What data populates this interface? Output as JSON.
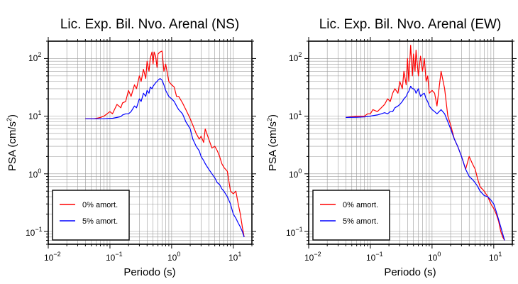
{
  "chart_data": [
    {
      "type": "line",
      "title": "Lic. Exp. Bil. Nvo. Arenal (NS)",
      "xlabel": "Periodo (s)",
      "ylabel_main": "PSA (cm/s",
      "ylabel_sup": "2",
      "ylabel_close": ")",
      "xscale": "log",
      "yscale": "log",
      "xlim": [
        0.01,
        20
      ],
      "ylim": [
        0.06,
        200
      ],
      "grid": true,
      "legend_position": "bottom-left",
      "x_ticks": [
        {
          "base": "10",
          "exp": "−2"
        },
        {
          "base": "10",
          "exp": "−1"
        },
        {
          "base": "10",
          "exp": "0"
        },
        {
          "base": "10",
          "exp": "1"
        }
      ],
      "y_ticks": [
        {
          "base": "10",
          "exp": "−1"
        },
        {
          "base": "10",
          "exp": "0"
        },
        {
          "base": "10",
          "exp": "1"
        },
        {
          "base": "10",
          "exp": "2"
        }
      ],
      "series": [
        {
          "name": "0% amort.",
          "color": "#ff0000",
          "x": [
            0.04,
            0.055,
            0.07,
            0.08,
            0.1,
            0.11,
            0.13,
            0.15,
            0.16,
            0.18,
            0.2,
            0.22,
            0.25,
            0.27,
            0.3,
            0.32,
            0.35,
            0.38,
            0.4,
            0.43,
            0.45,
            0.48,
            0.5,
            0.52,
            0.55,
            0.58,
            0.6,
            0.65,
            0.7,
            0.75,
            0.8,
            0.9,
            1.0,
            1.1,
            1.2,
            1.3,
            1.5,
            1.7,
            2.0,
            2.2,
            2.5,
            2.8,
            3.0,
            3.3,
            3.5,
            4.0,
            4.5,
            5.0,
            5.5,
            6.0,
            6.5,
            7.0,
            8.0,
            9.0,
            10.0,
            11.0,
            12.0,
            13.0,
            14.0,
            15.0
          ],
          "y": [
            9,
            9,
            9.5,
            10,
            12,
            11,
            16,
            14,
            17,
            18,
            28,
            22,
            35,
            30,
            50,
            40,
            65,
            45,
            90,
            60,
            100,
            130,
            80,
            130,
            110,
            70,
            120,
            130,
            135,
            60,
            80,
            40,
            35,
            32,
            22,
            22,
            17,
            13,
            9,
            7,
            5,
            4,
            4.5,
            3.5,
            6,
            4,
            2.8,
            3,
            2.5,
            2,
            1.5,
            1.3,
            1.1,
            0.5,
            0.45,
            0.5,
            0.3,
            0.2,
            0.12,
            0.08
          ]
        },
        {
          "name": "5% amort.",
          "color": "#0000ff",
          "x": [
            0.04,
            0.055,
            0.07,
            0.08,
            0.1,
            0.11,
            0.13,
            0.15,
            0.16,
            0.18,
            0.2,
            0.22,
            0.25,
            0.27,
            0.3,
            0.32,
            0.35,
            0.38,
            0.4,
            0.43,
            0.45,
            0.48,
            0.5,
            0.52,
            0.55,
            0.58,
            0.6,
            0.65,
            0.7,
            0.75,
            0.8,
            0.9,
            1.0,
            1.1,
            1.2,
            1.3,
            1.5,
            1.7,
            2.0,
            2.2,
            2.5,
            2.8,
            3.0,
            3.3,
            3.5,
            4.0,
            4.5,
            5.0,
            5.5,
            6.0,
            6.5,
            7.0,
            8.0,
            9.0,
            10.0,
            11.0,
            12.0,
            13.0,
            14.0,
            15.0
          ],
          "y": [
            9,
            9,
            9,
            9,
            9.2,
            9.2,
            9.5,
            9.8,
            10.5,
            11,
            11,
            12,
            15,
            14,
            20,
            18,
            25,
            22,
            28,
            25,
            32,
            30,
            33,
            35,
            38,
            40,
            42,
            45,
            42,
            35,
            28,
            22,
            20,
            18,
            15,
            13,
            11,
            8,
            6,
            4,
            3,
            2.5,
            2,
            1.7,
            1.5,
            1.2,
            1,
            0.85,
            0.7,
            0.65,
            0.55,
            0.5,
            0.4,
            0.3,
            0.2,
            0.17,
            0.14,
            0.12,
            0.1,
            0.08
          ]
        }
      ]
    },
    {
      "type": "line",
      "title": "Lic. Exp. Bil. Nvo. Arenal (EW)",
      "xlabel": "Periodo (s)",
      "ylabel_main": "PSA (cm/s",
      "ylabel_sup": "2",
      "ylabel_close": ")",
      "xscale": "log",
      "yscale": "log",
      "xlim": [
        0.01,
        20
      ],
      "ylim": [
        0.06,
        200
      ],
      "grid": true,
      "legend_position": "bottom-left",
      "x_ticks": [
        {
          "base": "10",
          "exp": "−2"
        },
        {
          "base": "10",
          "exp": "−1"
        },
        {
          "base": "10",
          "exp": "0"
        },
        {
          "base": "10",
          "exp": "1"
        }
      ],
      "y_ticks": [
        {
          "base": "10",
          "exp": "−1"
        },
        {
          "base": "10",
          "exp": "0"
        },
        {
          "base": "10",
          "exp": "1"
        },
        {
          "base": "10",
          "exp": "2"
        }
      ],
      "series": [
        {
          "name": "0% amort.",
          "color": "#ff0000",
          "x": [
            0.04,
            0.06,
            0.08,
            0.09,
            0.1,
            0.11,
            0.13,
            0.15,
            0.17,
            0.19,
            0.21,
            0.23,
            0.25,
            0.28,
            0.3,
            0.33,
            0.35,
            0.38,
            0.4,
            0.42,
            0.45,
            0.48,
            0.5,
            0.53,
            0.55,
            0.6,
            0.65,
            0.7,
            0.75,
            0.8,
            0.85,
            0.9,
            1.0,
            1.1,
            1.2,
            1.4,
            1.6,
            1.8,
            2.0,
            2.3,
            2.6,
            3.0,
            3.5,
            4.0,
            4.5,
            5.0,
            5.5,
            6.0,
            7.0,
            8.0,
            9.0,
            10.0,
            11.0,
            12.0,
            13.0,
            14.0,
            15.0
          ],
          "y": [
            9.5,
            10,
            10,
            11,
            11,
            13,
            12,
            14,
            16,
            20,
            18,
            25,
            30,
            25,
            40,
            30,
            60,
            35,
            100,
            40,
            170,
            50,
            120,
            60,
            140,
            50,
            110,
            60,
            100,
            40,
            50,
            25,
            28,
            25,
            15,
            60,
            30,
            10,
            7,
            4,
            3,
            2,
            1.2,
            2,
            1.5,
            1.2,
            0.8,
            0.6,
            0.5,
            0.4,
            0.3,
            0.25,
            0.2,
            0.15,
            0.1,
            0.08,
            0.07
          ]
        },
        {
          "name": "5% amort.",
          "color": "#0000ff",
          "x": [
            0.04,
            0.06,
            0.08,
            0.09,
            0.1,
            0.11,
            0.13,
            0.15,
            0.17,
            0.19,
            0.21,
            0.23,
            0.25,
            0.28,
            0.3,
            0.33,
            0.35,
            0.38,
            0.4,
            0.42,
            0.45,
            0.48,
            0.5,
            0.53,
            0.55,
            0.6,
            0.65,
            0.7,
            0.75,
            0.8,
            0.85,
            0.9,
            1.0,
            1.1,
            1.2,
            1.4,
            1.6,
            1.8,
            2.0,
            2.3,
            2.6,
            3.0,
            3.5,
            4.0,
            4.5,
            5.0,
            5.5,
            6.0,
            7.0,
            8.0,
            9.0,
            10.0,
            11.0,
            12.0,
            13.0,
            14.0,
            15.0
          ],
          "y": [
            9.5,
            9.6,
            9.7,
            9.8,
            10,
            10.2,
            10.5,
            11,
            11.5,
            11,
            12,
            12,
            14,
            15,
            16,
            18,
            20,
            22,
            25,
            27,
            33,
            30,
            30,
            28,
            25,
            30,
            22,
            24,
            25,
            20,
            18,
            15,
            13,
            12,
            11,
            13,
            11,
            8,
            6,
            4,
            3,
            2,
            1.2,
            0.9,
            0.8,
            0.7,
            0.6,
            0.5,
            0.42,
            0.4,
            0.35,
            0.3,
            0.22,
            0.16,
            0.12,
            0.09,
            0.07
          ]
        }
      ]
    }
  ]
}
